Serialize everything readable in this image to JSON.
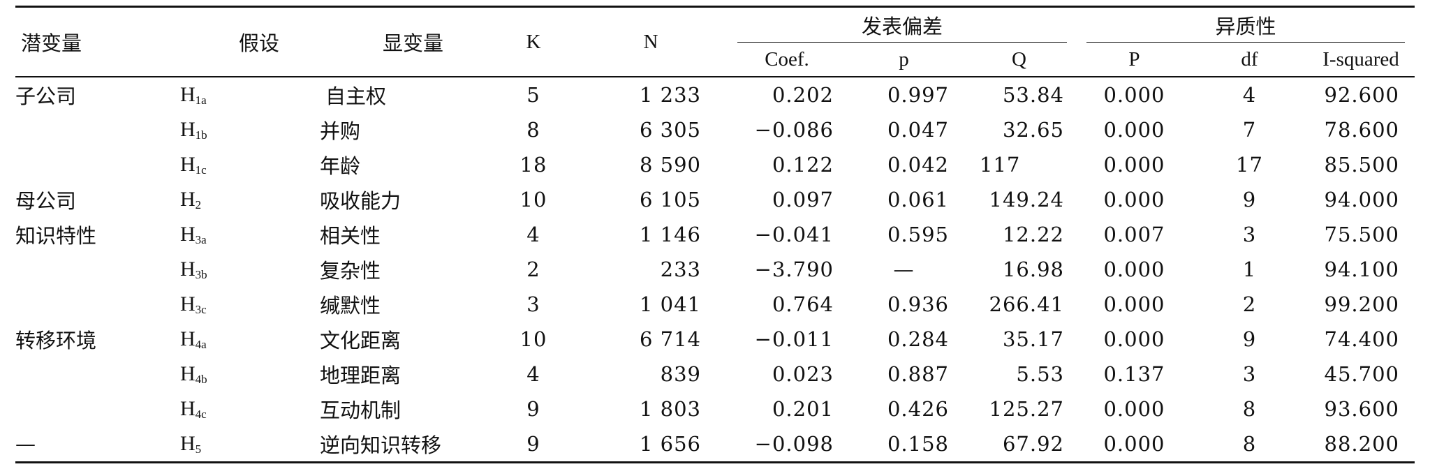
{
  "headers": {
    "latent": "潜变量",
    "hypothesis": "假设",
    "observed": "显变量",
    "k": "K",
    "n": "N",
    "publication_bias": "发表偏差",
    "heterogeneity": "异质性",
    "coef": "Coef.",
    "p_lower": "p",
    "q": "Q",
    "p_upper": "P",
    "df": "df",
    "i_squared": "I-squared"
  },
  "rows": [
    {
      "latent": "子公司",
      "h_main": "H",
      "h_sub": "1a",
      "observed": "自主权",
      "k": "5",
      "n": "1 233",
      "coef": "0.202",
      "p": "0.997",
      "q": "53.84",
      "P": "0.000",
      "df": "4",
      "i2": "92.600"
    },
    {
      "latent": "",
      "h_main": "H",
      "h_sub": "1b",
      "observed": "并购",
      "k": "8",
      "n": "6 305",
      "coef": "−0.086",
      "p": "0.047",
      "q": "32.65",
      "P": "0.000",
      "df": "7",
      "i2": "78.600"
    },
    {
      "latent": "",
      "h_main": "H",
      "h_sub": "1c",
      "observed": "年龄",
      "k": "18",
      "n": "8 590",
      "coef": "0.122",
      "p": "0.042",
      "q": "117",
      "P": "0.000",
      "df": "17",
      "i2": "85.500"
    },
    {
      "latent": "母公司",
      "h_main": "H",
      "h_sub": "2",
      "observed": "吸收能力",
      "k": "10",
      "n": "6 105",
      "coef": "0.097",
      "p": "0.061",
      "q": "149.24",
      "P": "0.000",
      "df": "9",
      "i2": "94.000"
    },
    {
      "latent": "知识特性",
      "h_main": "H",
      "h_sub": "3a",
      "observed": "相关性",
      "k": "4",
      "n": "1 146",
      "coef": "−0.041",
      "p": "0.595",
      "q": "12.22",
      "P": "0.007",
      "df": "3",
      "i2": "75.500"
    },
    {
      "latent": "",
      "h_main": "H",
      "h_sub": "3b",
      "observed": "复杂性",
      "k": "2",
      "n": "233",
      "coef": "−3.790",
      "p": "—",
      "q": "16.98",
      "P": "0.000",
      "df": "1",
      "i2": "94.100"
    },
    {
      "latent": "",
      "h_main": "H",
      "h_sub": "3c",
      "observed": "缄默性",
      "k": "3",
      "n": "1 041",
      "coef": "0.764",
      "p": "0.936",
      "q": "266.41",
      "P": "0.000",
      "df": "2",
      "i2": "99.200"
    },
    {
      "latent": "转移环境",
      "h_main": "H",
      "h_sub": "4a",
      "observed": "文化距离",
      "k": "10",
      "n": "6 714",
      "coef": "−0.011",
      "p": "0.284",
      "q": "35.17",
      "P": "0.000",
      "df": "9",
      "i2": "74.400"
    },
    {
      "latent": "",
      "h_main": "H",
      "h_sub": "4b",
      "observed": "地理距离",
      "k": "4",
      "n": "839",
      "coef": "0.023",
      "p": "0.887",
      "q": "5.53",
      "P": "0.137",
      "df": "3",
      "i2": "45.700"
    },
    {
      "latent": "",
      "h_main": "H",
      "h_sub": "4c",
      "observed": "互动机制",
      "k": "9",
      "n": "1 803",
      "coef": "0.201",
      "p": "0.426",
      "q": "125.27",
      "P": "0.000",
      "df": "8",
      "i2": "93.600"
    },
    {
      "latent": "—",
      "h_main": "H",
      "h_sub": "5",
      "observed": "逆向知识转移",
      "k": "9",
      "n": "1 656",
      "coef": "−0.098",
      "p": "0.158",
      "q": "67.92",
      "P": "0.000",
      "df": "8",
      "i2": "88.200"
    }
  ]
}
